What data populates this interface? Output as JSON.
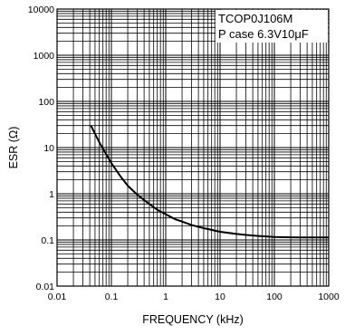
{
  "chart_data": {
    "type": "line",
    "xscale": "log",
    "yscale": "log",
    "xlim": [
      0.01,
      1000
    ],
    "ylim": [
      0.01,
      10000
    ],
    "xlabel": "FREQUENCY (kHz)",
    "ylabel": "ESR (Ω)",
    "x_ticks": [
      {
        "value": 0.01,
        "label": "0.01"
      },
      {
        "value": 0.1,
        "label": "0.1"
      },
      {
        "value": 1,
        "label": "1"
      },
      {
        "value": 10,
        "label": "10"
      },
      {
        "value": 100,
        "label": "100"
      },
      {
        "value": 1000,
        "label": "1000"
      }
    ],
    "y_ticks": [
      {
        "value": 0.01,
        "label": "0.01"
      },
      {
        "value": 0.1,
        "label": "0.1"
      },
      {
        "value": 1,
        "label": "1"
      },
      {
        "value": 10,
        "label": "10"
      },
      {
        "value": 100,
        "label": "100"
      },
      {
        "value": 1000,
        "label": "1000"
      },
      {
        "value": 10000,
        "label": "10000"
      }
    ],
    "annotation": {
      "line1": "TCOP0J106M",
      "line2": "P case 6.3V10μF"
    },
    "grid": true,
    "series": [
      {
        "x": [
          0.042,
          0.06,
          0.1,
          0.15,
          0.2,
          0.3,
          0.5,
          0.7,
          1,
          1.5,
          2,
          3,
          5,
          7,
          10,
          20,
          30,
          50,
          70,
          100,
          200,
          300,
          500,
          1000
        ],
        "y": [
          30,
          13,
          4.6,
          2.3,
          1.5,
          0.95,
          0.6,
          0.45,
          0.36,
          0.28,
          0.25,
          0.21,
          0.18,
          0.165,
          0.15,
          0.135,
          0.128,
          0.122,
          0.119,
          0.116,
          0.114,
          0.113,
          0.113,
          0.113
        ]
      }
    ]
  }
}
